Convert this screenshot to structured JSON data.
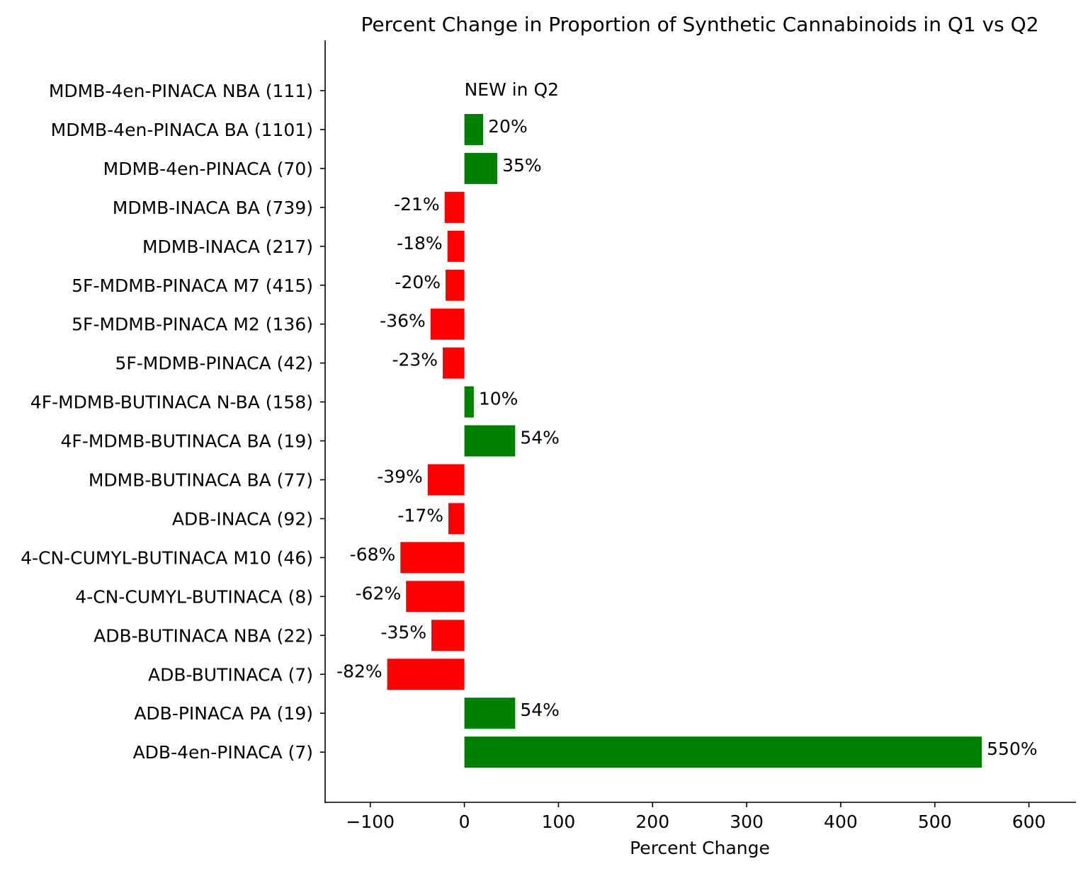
{
  "chart_data": {
    "type": "bar",
    "orientation": "horizontal",
    "title": "Percent Change in Proportion of Synthetic Cannabinoids in Q1 vs Q2",
    "xlabel": "Percent Change",
    "ylabel": "",
    "xlim": [
      -148,
      650
    ],
    "xticks": [
      -100,
      0,
      100,
      200,
      300,
      400,
      500,
      600
    ],
    "xtick_labels": [
      "−100",
      "0",
      "100",
      "200",
      "300",
      "400",
      "500",
      "600"
    ],
    "grid": false,
    "colors": {
      "positive": "#008000",
      "negative": "#ff0000",
      "new_annotation": "#0000ff"
    },
    "categories": [
      "MDMB-4en-PINACA NBA (111)",
      "MDMB-4en-PINACA BA (1101)",
      "MDMB-4en-PINACA (70)",
      "MDMB-INACA BA (739)",
      "MDMB-INACA (217)",
      "5F-MDMB-PINACA M7 (415)",
      "5F-MDMB-PINACA M2 (136)",
      "5F-MDMB-PINACA (42)",
      "4F-MDMB-BUTINACA N-BA (158)",
      "4F-MDMB-BUTINACA BA (19)",
      "MDMB-BUTINACA BA (77)",
      "ADB-INACA (92)",
      "4-CN-CUMYL-BUTINACA M10 (46)",
      "4-CN-CUMYL-BUTINACA (8)",
      "ADB-BUTINACA NBA (22)",
      "ADB-BUTINACA (7)",
      "ADB-PINACA PA (19)",
      "ADB-4en-PINACA (7)"
    ],
    "values": [
      null,
      20,
      35,
      -21,
      -18,
      -20,
      -36,
      -23,
      10,
      54,
      -39,
      -17,
      -68,
      -62,
      -35,
      -82,
      54,
      550
    ],
    "data_labels": [
      "NEW in Q2",
      "20%",
      "35%",
      "-21%",
      "-18%",
      "-20%",
      "-36%",
      "-23%",
      "10%",
      "54%",
      "-39%",
      "-17%",
      "-68%",
      "-62%",
      "-35%",
      "-82%",
      "54%",
      "550%"
    ]
  }
}
